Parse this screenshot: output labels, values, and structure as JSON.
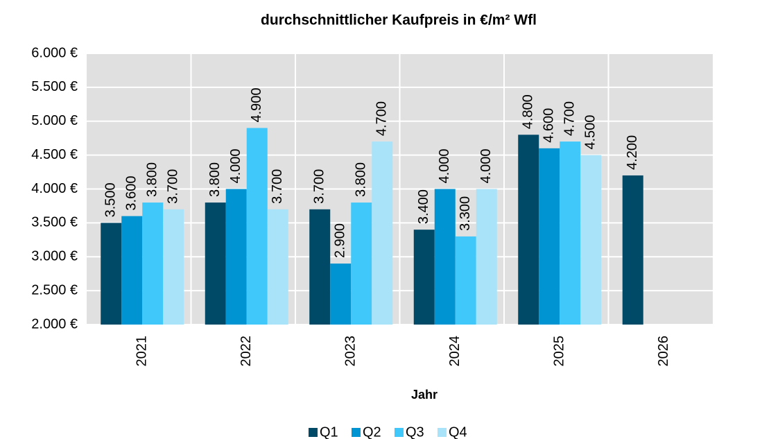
{
  "chart_data": {
    "type": "bar",
    "title": "durchschnittlicher Kaufpreis in €/m² Wfl",
    "x_label": "Jahr",
    "categories": [
      "2021",
      "2022",
      "2023",
      "2024",
      "2025",
      "2026"
    ],
    "series": [
      {
        "name": "Q1",
        "color": "#004a68",
        "values": [
          3500,
          3800,
          3700,
          3400,
          4800,
          4200
        ],
        "value_labels": [
          "3.500",
          "3.800",
          "3.700",
          "3.400",
          "4.800",
          "4.200"
        ]
      },
      {
        "name": "Q2",
        "color": "#0094d2",
        "values": [
          3600,
          4000,
          2900,
          4000,
          4600,
          null
        ],
        "value_labels": [
          "3.600",
          "4.000",
          "2.900",
          "4.000",
          "4.600",
          null
        ]
      },
      {
        "name": "Q3",
        "color": "#40c8fb",
        "values": [
          3800,
          4900,
          3800,
          3300,
          4700,
          null
        ],
        "value_labels": [
          "3.800",
          "4.900",
          "3.800",
          "3.300",
          "4.700",
          null
        ]
      },
      {
        "name": "Q4",
        "color": "#a8e3fa",
        "values": [
          3700,
          3700,
          4700,
          4000,
          4500,
          null
        ],
        "value_labels": [
          "3.700",
          "3.700",
          "4.700",
          "4.000",
          "4.500",
          null
        ]
      }
    ],
    "ylim": [
      2000,
      6000
    ],
    "yticks": [
      {
        "value": 2000,
        "label": "2.000 €"
      },
      {
        "value": 2500,
        "label": "2.500 €"
      },
      {
        "value": 3000,
        "label": "3.000 €"
      },
      {
        "value": 3500,
        "label": "3.500 €"
      },
      {
        "value": 4000,
        "label": "4.000 €"
      },
      {
        "value": 4500,
        "label": "4.500 €"
      },
      {
        "value": 5000,
        "label": "5.000 €"
      },
      {
        "value": 5500,
        "label": "5.500 €"
      },
      {
        "value": 6000,
        "label": "6.000 €"
      }
    ],
    "grid": true,
    "legend": "bottom"
  }
}
